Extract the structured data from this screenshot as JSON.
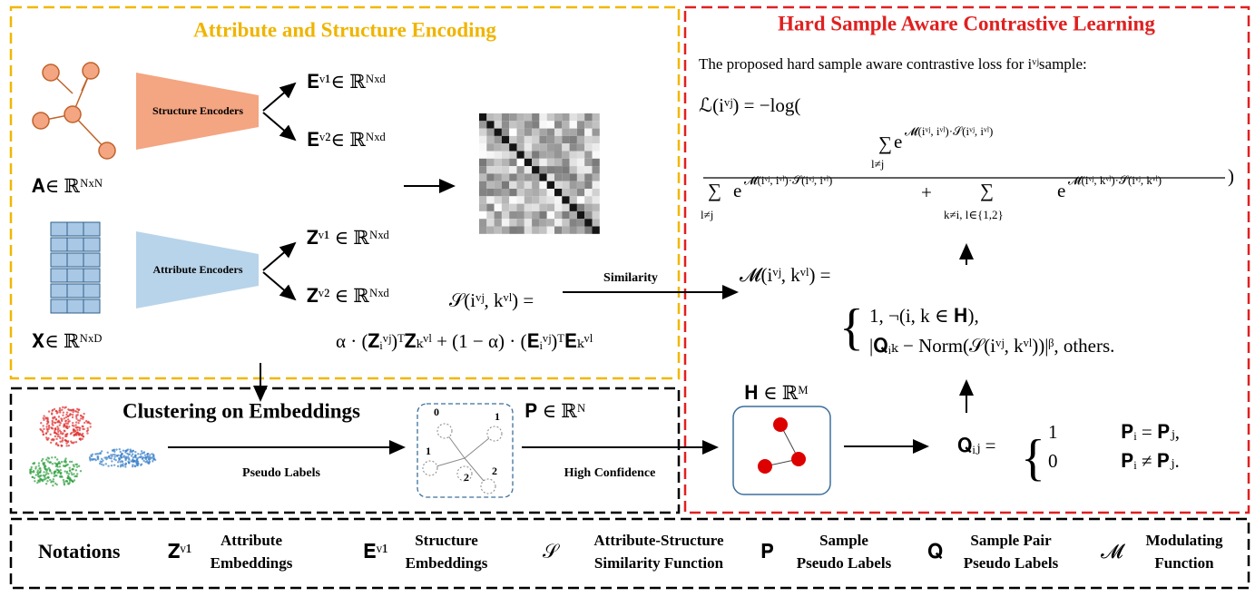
{
  "encoding": {
    "title": "Attribute and Structure Encoding",
    "structure_encoder": "Structure Encoders",
    "attribute_encoder": "Attribute Encoders",
    "adjacency_label": "𝐀∈ ℝᴺˣᴺ",
    "feature_label": "𝐗∈ ℝᴺˣᴰ",
    "e1": "𝐄ᵛ¹∈ ℝᴺˣᵈ",
    "e2": "𝐄ᵛ²∈ ℝᴺˣᵈ",
    "z1": "𝐙ᵛ¹ ∈ ℝᴺˣᵈ",
    "z2": "𝐙ᵛ² ∈ ℝᴺˣᵈ",
    "similarity_def": "𝒮(iᵛʲ, kᵛˡ) =",
    "similarity_expr": "α · (𝐙ᵢᵛʲ)ᵀ𝐙ₖᵛˡ + (1 − α) · (𝐄ᵢᵛʲ)ᵀ𝐄ₖᵛˡ"
  },
  "similarity_arrow": "Similarity",
  "contrastive": {
    "title": "Hard Sample Aware Contrastive Learning",
    "description": "The proposed hard sample aware contrastive loss for iᵛʲsample:",
    "loss_lhs": "ℒ(iᵛʲ) = −log(",
    "sum": "∑",
    "exp_base": "e",
    "exponent_pos": "𝓜(iᵛʲ, iᵛˡ)·𝒮(iᵛʲ, iᵛˡ)",
    "exponent_neg": "𝓜(iᵛʲ, kᵛˡ)·𝒮(iᵛʲ, kᵛˡ)",
    "sub_pos": "l≠j",
    "sub_neg": "k≠i, l∈{1,2}",
    "plus": "+",
    "close": ")",
    "modulating_lhs": "𝓜(iᵛʲ, kᵛˡ) =",
    "modulating_case1": "1,  ¬(i, k ∈ 𝐇),",
    "modulating_case2": "|𝐐ᵢₖ − Norm(𝒮(iᵛʲ, kᵛˡ))|ᵝ,  others.",
    "h_label": "𝐇 ∈ ℝᴹ",
    "q_lhs": "𝐐ᵢⱼ =",
    "q_case1_value": "1",
    "q_case1_cond": "𝐏ᵢ = 𝐏ⱼ,",
    "q_case2_value": "0",
    "q_case2_cond": "𝐏ᵢ ≠ 𝐏ⱼ."
  },
  "clustering": {
    "title": "Clustering on Embeddings",
    "edge_label": "Pseudo Labels",
    "p_label": "𝐏 ∈ ℝᴺ",
    "high_confidence": "High Confidence",
    "node_labels": [
      "0",
      "1",
      "1",
      "2",
      "2"
    ]
  },
  "notations": {
    "title": "Notations",
    "items": [
      {
        "symbol": "𝐙ᵛ¹",
        "label": [
          "Attribute",
          "Embeddings"
        ]
      },
      {
        "symbol": "𝐄ᵛ¹",
        "label": [
          "Structure",
          "Embeddings"
        ]
      },
      {
        "symbol": "𝒮",
        "label": [
          "Attribute-Structure",
          "Similarity Function"
        ]
      },
      {
        "symbol": "𝐏",
        "label": [
          "Sample",
          "Pseudo Labels"
        ]
      },
      {
        "symbol": "𝐐",
        "label": [
          "Sample Pair",
          "Pseudo Labels"
        ]
      },
      {
        "symbol": "𝓜",
        "label": [
          "Modulating",
          "Function"
        ]
      }
    ]
  }
}
